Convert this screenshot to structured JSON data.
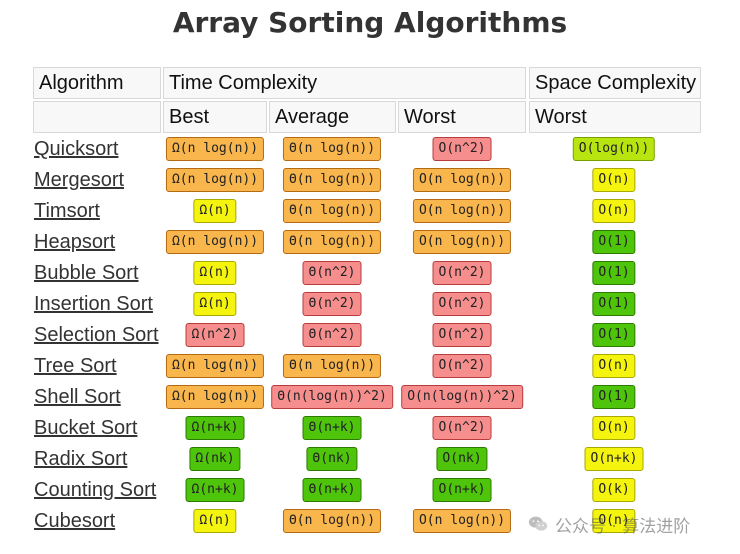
{
  "title": "Array Sorting Algorithms",
  "headers": {
    "algorithm": "Algorithm",
    "time_complexity": "Time Complexity",
    "space_complexity": "Space Complexity",
    "best": "Best",
    "average": "Average",
    "worst": "Worst",
    "space_worst": "Worst"
  },
  "colors": {
    "orange": "#f8b64c",
    "red": "#f78e8e",
    "yellow": "#f4f40e",
    "lime": "#b8e40f",
    "green": "#4ec40a"
  },
  "rows": [
    {
      "name": "Quicksort",
      "best": {
        "text": "Ω(n log(n))",
        "color": "orange"
      },
      "average": {
        "text": "Θ(n log(n))",
        "color": "orange"
      },
      "worst": {
        "text": "O(n^2)",
        "color": "red"
      },
      "space": {
        "text": "O(log(n))",
        "color": "lime"
      }
    },
    {
      "name": "Mergesort",
      "best": {
        "text": "Ω(n log(n))",
        "color": "orange"
      },
      "average": {
        "text": "Θ(n log(n))",
        "color": "orange"
      },
      "worst": {
        "text": "O(n log(n))",
        "color": "orange"
      },
      "space": {
        "text": "O(n)",
        "color": "yellow"
      }
    },
    {
      "name": "Timsort",
      "best": {
        "text": "Ω(n)",
        "color": "yellow"
      },
      "average": {
        "text": "Θ(n log(n))",
        "color": "orange"
      },
      "worst": {
        "text": "O(n log(n))",
        "color": "orange"
      },
      "space": {
        "text": "O(n)",
        "color": "yellow"
      }
    },
    {
      "name": "Heapsort",
      "best": {
        "text": "Ω(n log(n))",
        "color": "orange"
      },
      "average": {
        "text": "Θ(n log(n))",
        "color": "orange"
      },
      "worst": {
        "text": "O(n log(n))",
        "color": "orange"
      },
      "space": {
        "text": "O(1)",
        "color": "green"
      }
    },
    {
      "name": "Bubble Sort",
      "best": {
        "text": "Ω(n)",
        "color": "yellow"
      },
      "average": {
        "text": "Θ(n^2)",
        "color": "red"
      },
      "worst": {
        "text": "O(n^2)",
        "color": "red"
      },
      "space": {
        "text": "O(1)",
        "color": "green"
      }
    },
    {
      "name": "Insertion Sort",
      "best": {
        "text": "Ω(n)",
        "color": "yellow"
      },
      "average": {
        "text": "Θ(n^2)",
        "color": "red"
      },
      "worst": {
        "text": "O(n^2)",
        "color": "red"
      },
      "space": {
        "text": "O(1)",
        "color": "green"
      }
    },
    {
      "name": "Selection Sort",
      "best": {
        "text": "Ω(n^2)",
        "color": "red"
      },
      "average": {
        "text": "Θ(n^2)",
        "color": "red"
      },
      "worst": {
        "text": "O(n^2)",
        "color": "red"
      },
      "space": {
        "text": "O(1)",
        "color": "green"
      }
    },
    {
      "name": "Tree Sort",
      "best": {
        "text": "Ω(n log(n))",
        "color": "orange"
      },
      "average": {
        "text": "Θ(n log(n))",
        "color": "orange"
      },
      "worst": {
        "text": "O(n^2)",
        "color": "red"
      },
      "space": {
        "text": "O(n)",
        "color": "yellow"
      }
    },
    {
      "name": "Shell Sort",
      "best": {
        "text": "Ω(n log(n))",
        "color": "orange"
      },
      "average": {
        "text": "Θ(n(log(n))^2)",
        "color": "red"
      },
      "worst": {
        "text": "O(n(log(n))^2)",
        "color": "red"
      },
      "space": {
        "text": "O(1)",
        "color": "green"
      }
    },
    {
      "name": "Bucket Sort",
      "best": {
        "text": "Ω(n+k)",
        "color": "green"
      },
      "average": {
        "text": "Θ(n+k)",
        "color": "green"
      },
      "worst": {
        "text": "O(n^2)",
        "color": "red"
      },
      "space": {
        "text": "O(n)",
        "color": "yellow"
      }
    },
    {
      "name": "Radix Sort",
      "best": {
        "text": "Ω(nk)",
        "color": "green"
      },
      "average": {
        "text": "Θ(nk)",
        "color": "green"
      },
      "worst": {
        "text": "O(nk)",
        "color": "green"
      },
      "space": {
        "text": "O(n+k)",
        "color": "yellow"
      }
    },
    {
      "name": "Counting Sort",
      "best": {
        "text": "Ω(n+k)",
        "color": "green"
      },
      "average": {
        "text": "Θ(n+k)",
        "color": "green"
      },
      "worst": {
        "text": "O(n+k)",
        "color": "green"
      },
      "space": {
        "text": "O(k)",
        "color": "yellow"
      }
    },
    {
      "name": "Cubesort",
      "best": {
        "text": "Ω(n)",
        "color": "yellow"
      },
      "average": {
        "text": "Θ(n log(n))",
        "color": "orange"
      },
      "worst": {
        "text": "O(n log(n))",
        "color": "orange"
      },
      "space": {
        "text": "O(n)",
        "color": "yellow"
      }
    }
  ],
  "watermark": {
    "text": "公众号 · 算法进阶",
    "icon": "wechat-icon"
  }
}
